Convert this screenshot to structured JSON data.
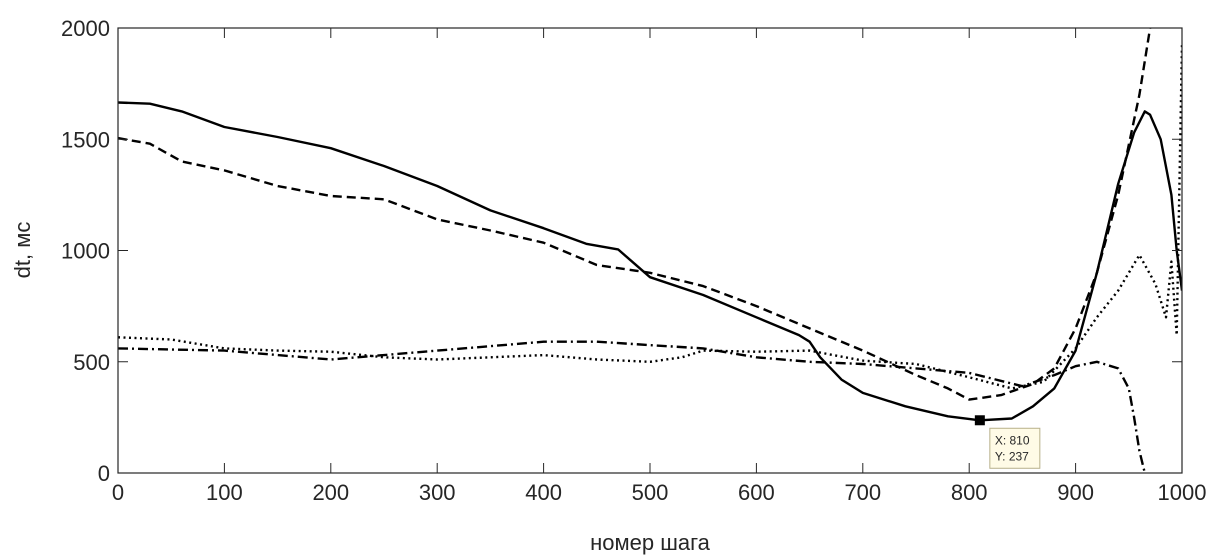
{
  "chart_data": {
    "type": "line",
    "title": "",
    "xlabel": "номер шага",
    "ylabel": "dt, мс",
    "xlim": [
      0,
      1000
    ],
    "ylim": [
      0,
      2000
    ],
    "x_ticks": [
      0,
      100,
      200,
      300,
      400,
      500,
      600,
      700,
      800,
      900,
      1000
    ],
    "y_ticks": [
      0,
      500,
      1000,
      1500,
      2000
    ],
    "grid": false,
    "box": true,
    "series": [
      {
        "style": "solid",
        "color": "#000000",
        "points": [
          [
            0,
            1665
          ],
          [
            30,
            1660
          ],
          [
            60,
            1625
          ],
          [
            100,
            1555
          ],
          [
            150,
            1510
          ],
          [
            200,
            1460
          ],
          [
            250,
            1380
          ],
          [
            300,
            1290
          ],
          [
            350,
            1180
          ],
          [
            400,
            1100
          ],
          [
            440,
            1030
          ],
          [
            470,
            1005
          ],
          [
            500,
            880
          ],
          [
            550,
            800
          ],
          [
            600,
            700
          ],
          [
            640,
            620
          ],
          [
            650,
            590
          ],
          [
            660,
            520
          ],
          [
            680,
            420
          ],
          [
            700,
            360
          ],
          [
            740,
            300
          ],
          [
            780,
            255
          ],
          [
            810,
            237
          ],
          [
            840,
            245
          ],
          [
            860,
            300
          ],
          [
            880,
            380
          ],
          [
            900,
            550
          ],
          [
            920,
            900
          ],
          [
            940,
            1300
          ],
          [
            955,
            1530
          ],
          [
            965,
            1625
          ],
          [
            970,
            1610
          ],
          [
            980,
            1500
          ],
          [
            990,
            1250
          ],
          [
            995,
            1000
          ],
          [
            1000,
            820
          ]
        ]
      },
      {
        "style": "dashed",
        "color": "#000000",
        "points": [
          [
            0,
            1505
          ],
          [
            30,
            1480
          ],
          [
            60,
            1400
          ],
          [
            100,
            1360
          ],
          [
            150,
            1290
          ],
          [
            200,
            1245
          ],
          [
            250,
            1230
          ],
          [
            300,
            1140
          ],
          [
            350,
            1090
          ],
          [
            400,
            1035
          ],
          [
            450,
            935
          ],
          [
            500,
            900
          ],
          [
            550,
            840
          ],
          [
            600,
            750
          ],
          [
            650,
            650
          ],
          [
            700,
            550
          ],
          [
            750,
            440
          ],
          [
            780,
            380
          ],
          [
            800,
            330
          ],
          [
            830,
            350
          ],
          [
            860,
            400
          ],
          [
            880,
            470
          ],
          [
            900,
            650
          ],
          [
            920,
            900
          ],
          [
            940,
            1250
          ],
          [
            960,
            1700
          ],
          [
            970,
            2000
          ]
        ]
      },
      {
        "style": "dotted",
        "color": "#000000",
        "points": [
          [
            0,
            610
          ],
          [
            50,
            600
          ],
          [
            100,
            560
          ],
          [
            150,
            550
          ],
          [
            200,
            545
          ],
          [
            250,
            520
          ],
          [
            300,
            510
          ],
          [
            350,
            520
          ],
          [
            400,
            530
          ],
          [
            450,
            510
          ],
          [
            500,
            500
          ],
          [
            530,
            520
          ],
          [
            550,
            550
          ],
          [
            600,
            545
          ],
          [
            650,
            550
          ],
          [
            700,
            505
          ],
          [
            750,
            490
          ],
          [
            800,
            430
          ],
          [
            840,
            380
          ],
          [
            870,
            410
          ],
          [
            900,
            560
          ],
          [
            920,
            700
          ],
          [
            940,
            820
          ],
          [
            960,
            980
          ],
          [
            975,
            850
          ],
          [
            985,
            700
          ],
          [
            990,
            950
          ],
          [
            995,
            620
          ],
          [
            1000,
            1930
          ]
        ]
      },
      {
        "style": "dashdot",
        "color": "#000000",
        "points": [
          [
            0,
            560
          ],
          [
            100,
            550
          ],
          [
            200,
            510
          ],
          [
            300,
            550
          ],
          [
            400,
            590
          ],
          [
            450,
            590
          ],
          [
            500,
            575
          ],
          [
            550,
            560
          ],
          [
            600,
            520
          ],
          [
            650,
            500
          ],
          [
            700,
            490
          ],
          [
            750,
            470
          ],
          [
            800,
            450
          ],
          [
            850,
            390
          ],
          [
            880,
            440
          ],
          [
            900,
            480
          ],
          [
            920,
            500
          ],
          [
            940,
            470
          ],
          [
            950,
            380
          ],
          [
            955,
            250
          ],
          [
            960,
            100
          ],
          [
            965,
            0
          ]
        ]
      }
    ],
    "annotations": [
      {
        "type": "datatip",
        "x": 810,
        "y": 237,
        "lines": [
          "X: 810",
          "Y: 237"
        ]
      }
    ]
  }
}
